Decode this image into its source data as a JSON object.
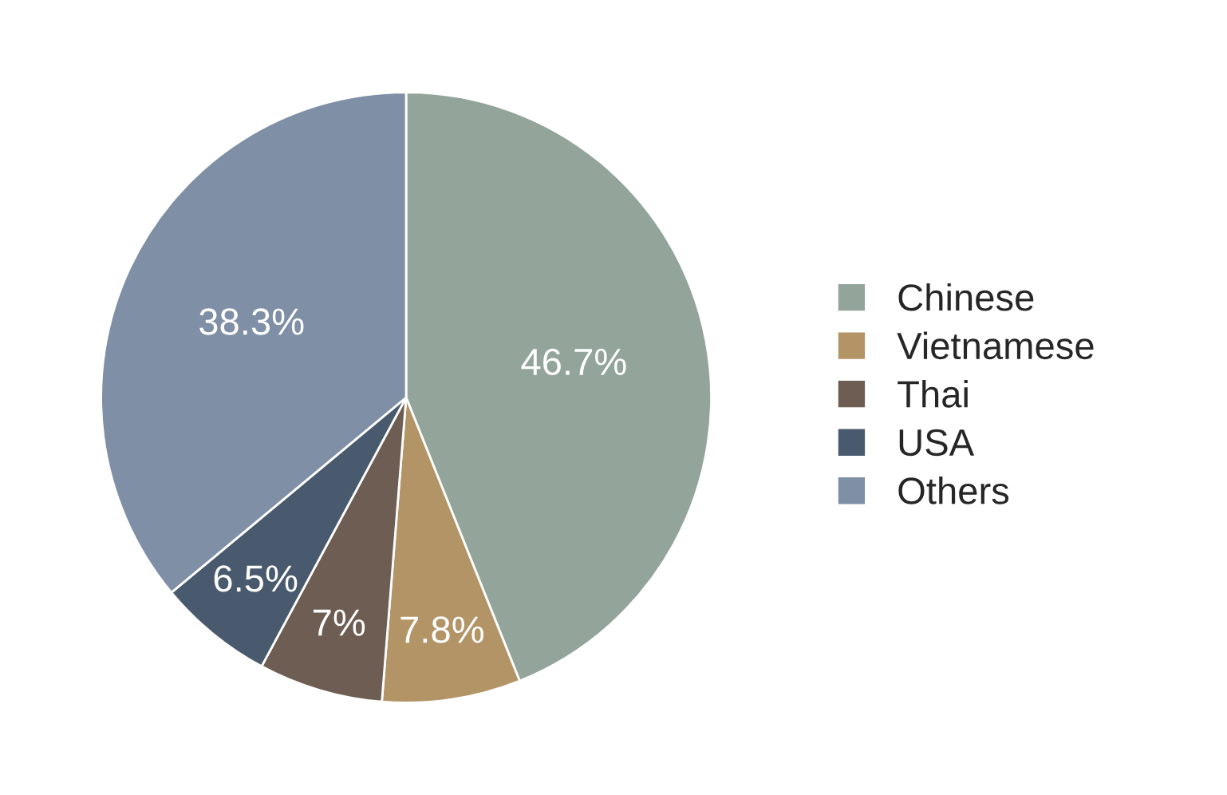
{
  "chart_data": {
    "type": "pie",
    "categories": [
      "Chinese",
      "Vietnamese",
      "Thai",
      "USA",
      "Others"
    ],
    "values": [
      46.7,
      7.8,
      7,
      6.5,
      38.3
    ],
    "value_labels": [
      "46.7%",
      "7.8%",
      "7%",
      "6.5%",
      "38.3%"
    ],
    "colors": [
      "#93a59a",
      "#b39467",
      "#6e5d52",
      "#4a5a6e",
      "#7f8fa6"
    ],
    "legend": "right"
  }
}
